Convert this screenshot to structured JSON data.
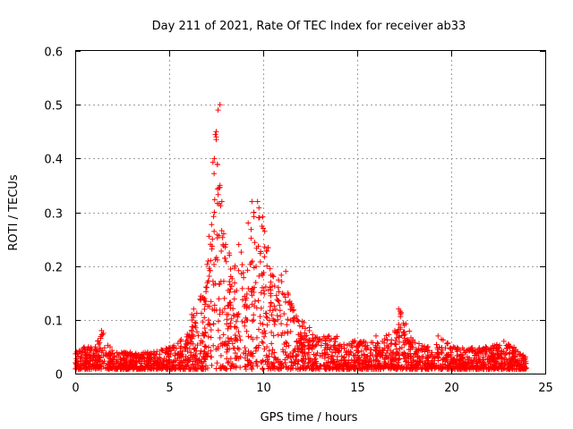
{
  "chart_data": {
    "type": "scatter",
    "title": "Day 211 of 2021, Rate Of TEC Index for receiver ab33",
    "xlabel": "GPS time / hours",
    "ylabel": "ROTI / TECUs",
    "xlim": [
      0,
      25
    ],
    "ylim": [
      0,
      0.6
    ],
    "x_ticks": [
      0,
      5,
      10,
      15,
      20,
      25
    ],
    "y_ticks": [
      0,
      0.1,
      0.2,
      0.3,
      0.4,
      0.5,
      0.6
    ],
    "x_tick_labels": [
      "0",
      "5",
      "10",
      "15",
      "20",
      "25"
    ],
    "y_tick_labels": [
      "0",
      "0.1",
      "0.2",
      "0.3",
      "0.4",
      "0.5",
      "0.6"
    ],
    "grid": true,
    "marker": "+",
    "color": "#ff0000",
    "series": [
      {
        "name": "ROTI",
        "envelope_note": "approximate upper envelope of the dense point cloud (hours, TECU)",
        "envelope_x": [
          0,
          0.5,
          1,
          1.5,
          2,
          3,
          4,
          5,
          5.5,
          6,
          6.5,
          7,
          7.2,
          7.4,
          7.6,
          7.8,
          8,
          8.5,
          9,
          9.5,
          10,
          10.5,
          11,
          11.5,
          12,
          13,
          14,
          15,
          16,
          17,
          17.3,
          18,
          19,
          19.5,
          20,
          21,
          22,
          23,
          24
        ],
        "envelope_y": [
          0.04,
          0.05,
          0.05,
          0.08,
          0.04,
          0.04,
          0.04,
          0.05,
          0.06,
          0.09,
          0.12,
          0.2,
          0.3,
          0.45,
          0.5,
          0.3,
          0.26,
          0.2,
          0.25,
          0.32,
          0.3,
          0.2,
          0.19,
          0.13,
          0.1,
          0.07,
          0.07,
          0.06,
          0.06,
          0.08,
          0.12,
          0.06,
          0.05,
          0.07,
          0.05,
          0.05,
          0.05,
          0.06,
          0.03
        ],
        "points": [
          [
            1.4,
            0.08
          ],
          [
            1.5,
            0.075
          ],
          [
            6.2,
            0.11
          ],
          [
            6.3,
            0.12
          ],
          [
            7.0,
            0.16
          ],
          [
            7.2,
            0.21
          ],
          [
            7.3,
            0.25
          ],
          [
            7.4,
            0.3
          ],
          [
            7.4,
            0.4
          ],
          [
            7.5,
            0.44
          ],
          [
            7.5,
            0.45
          ],
          [
            7.6,
            0.49
          ],
          [
            7.7,
            0.5
          ],
          [
            7.7,
            0.35
          ],
          [
            7.8,
            0.32
          ],
          [
            7.9,
            0.26
          ],
          [
            8.0,
            0.24
          ],
          [
            8.2,
            0.22
          ],
          [
            8.5,
            0.2
          ],
          [
            8.7,
            0.24
          ],
          [
            9.2,
            0.28
          ],
          [
            9.4,
            0.32
          ],
          [
            9.5,
            0.3
          ],
          [
            9.7,
            0.32
          ],
          [
            9.8,
            0.29
          ],
          [
            10.0,
            0.27
          ],
          [
            10.2,
            0.2
          ],
          [
            10.4,
            0.17
          ],
          [
            10.8,
            0.16
          ],
          [
            11.2,
            0.19
          ],
          [
            11.5,
            0.13
          ],
          [
            11.8,
            0.1
          ],
          [
            13.5,
            0.07
          ],
          [
            16.0,
            0.07
          ],
          [
            17.0,
            0.08
          ],
          [
            17.2,
            0.12
          ],
          [
            17.3,
            0.11
          ],
          [
            17.5,
            0.09
          ],
          [
            19.3,
            0.07
          ],
          [
            22.8,
            0.06
          ]
        ]
      }
    ]
  }
}
